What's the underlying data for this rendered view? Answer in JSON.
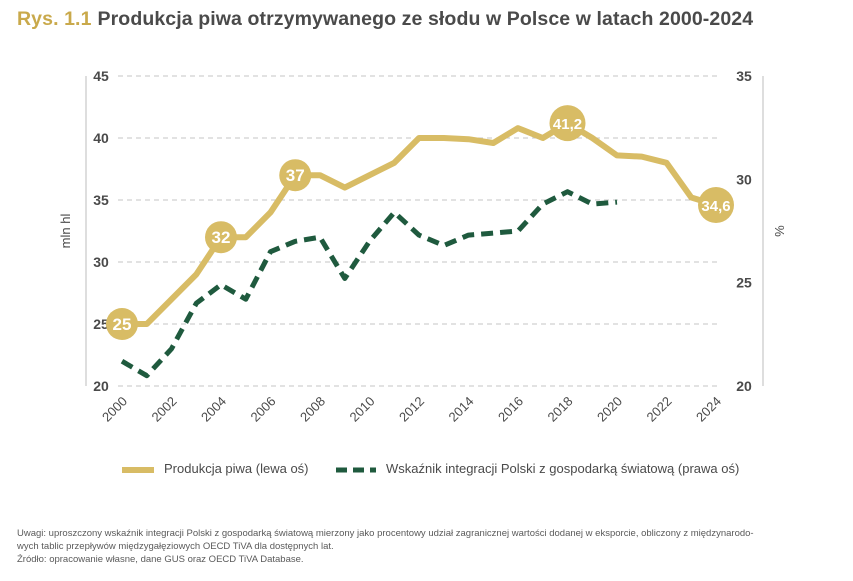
{
  "title": {
    "prefix": "Rys. 1.1",
    "text": "Produkcja piwa otrzymywanego ze słodu w Polsce w latach 2000-2024"
  },
  "colors": {
    "accent_gold": "#c9a94b",
    "series_gold": "#d8bc65",
    "series_green": "#1f5a3e",
    "grid": "#bfbfbf",
    "text": "#4a4a4a"
  },
  "chart_data": {
    "type": "line",
    "left_axis": {
      "label": "mln hl",
      "ticks": [
        "20",
        "25",
        "30",
        "35",
        "40",
        "45"
      ],
      "range": [
        20,
        45
      ]
    },
    "right_axis": {
      "label": "%",
      "ticks": [
        "20",
        "25",
        "30",
        "35"
      ],
      "range": [
        20,
        35
      ]
    },
    "x_ticks": [
      "2000",
      "2002",
      "2004",
      "2006",
      "2008",
      "2010",
      "2012",
      "2014",
      "2016",
      "2018",
      "2020",
      "2022",
      "2024"
    ],
    "x_range": [
      2000,
      2024
    ],
    "grid": "horizontal dashed",
    "series": [
      {
        "name": "Produkcja piwa (lewa oś)",
        "axis": "left",
        "style": "solid",
        "color": "#d8bc65",
        "x": [
          2000,
          2001,
          2002,
          2003,
          2004,
          2005,
          2006,
          2007,
          2008,
          2009,
          2010,
          2011,
          2012,
          2013,
          2014,
          2015,
          2016,
          2017,
          2018,
          2019,
          2020,
          2021,
          2022,
          2023,
          2024
        ],
        "y": [
          25.0,
          25.0,
          27.0,
          29.0,
          32.0,
          32.0,
          34.0,
          37.0,
          37.0,
          36.0,
          37.0,
          38.0,
          40.0,
          40.0,
          39.9,
          39.6,
          40.8,
          40.0,
          41.2,
          40.0,
          38.6,
          38.5,
          38.0,
          35.2,
          34.6
        ],
        "labels": [
          {
            "x": 2000,
            "y": 25.0,
            "text": "25"
          },
          {
            "x": 2004,
            "y": 32.0,
            "text": "32"
          },
          {
            "x": 2007,
            "y": 37.0,
            "text": "37"
          },
          {
            "x": 2018,
            "y": 41.2,
            "text": "41,2"
          },
          {
            "x": 2024,
            "y": 34.6,
            "text": "34,6"
          }
        ]
      },
      {
        "name": "Wskaźnik integracji Polski z gospodarką światową (prawa oś)",
        "axis": "right",
        "style": "dashed",
        "color": "#1f5a3e",
        "x": [
          2000,
          2001,
          2002,
          2003,
          2004,
          2005,
          2006,
          2007,
          2008,
          2009,
          2010,
          2011,
          2012,
          2013,
          2014,
          2015,
          2016,
          2017,
          2018,
          2019,
          2020
        ],
        "y": [
          21.2,
          20.5,
          21.8,
          24.0,
          24.9,
          24.2,
          26.5,
          27.0,
          27.2,
          25.2,
          27.0,
          28.4,
          27.3,
          26.8,
          27.3,
          27.4,
          27.5,
          28.8,
          29.4,
          28.8,
          28.9
        ]
      }
    ]
  },
  "legend": {
    "items": [
      {
        "label": "Produkcja piwa (lewa oś)"
      },
      {
        "label": "Wskaźnik integracji Polski z gospodarką światową (prawa oś)"
      }
    ]
  },
  "footer": {
    "note_line1": "Uwagi: uproszczony wskaźnik integracji Polski z gospodarką światową mierzony jako procentowy udział zagranicznej wartości dodanej w eksporcie, obliczony z międzynarodo-",
    "note_line2": "wych tablic przepływów międzygałęziowych OECD TiVA dla dostępnych lat.",
    "source": "Źródło: opracowanie własne, dane GUS oraz OECD TiVA Database."
  }
}
